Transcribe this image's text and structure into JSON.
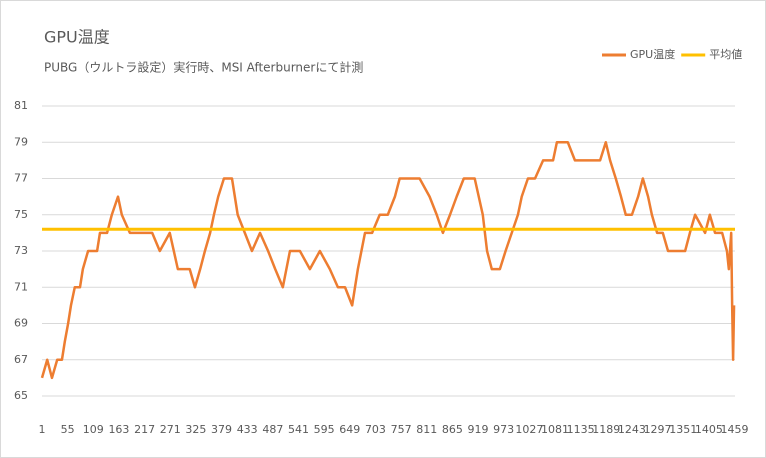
{
  "chart_data": {
    "type": "line",
    "title": "GPU温度",
    "subtitle": "PUBG（ウルトラ設定）実行時、MSI Afterburnerにて計測",
    "xlim": [
      1,
      1460
    ],
    "xticks": [
      1,
      55,
      109,
      163,
      217,
      271,
      325,
      379,
      433,
      487,
      541,
      595,
      649,
      703,
      757,
      811,
      865,
      919,
      973,
      1027,
      1081,
      1135,
      1189,
      1243,
      1297,
      1351,
      1405,
      1459
    ],
    "ylim": [
      65,
      81
    ],
    "yticks": [
      65,
      67,
      69,
      71,
      73,
      75,
      77,
      79,
      81
    ],
    "grid": true,
    "legend": "top-right",
    "series": [
      {
        "name": "GPU温度",
        "color": "#ed7d31",
        "x": [
          1,
          12,
          22,
          33,
          43,
          49,
          56,
          62,
          70,
          81,
          87,
          98,
          117,
          123,
          138,
          148,
          161,
          169,
          186,
          207,
          233,
          249,
          270,
          287,
          312,
          323,
          334,
          344,
          355,
          363,
          372,
          384,
          401,
          413,
          428,
          443,
          460,
          477,
          492,
          508,
          523,
          544,
          565,
          586,
          607,
          624,
          639,
          654,
          666,
          681,
          696,
          712,
          729,
          744,
          754,
          775,
          796,
          817,
          832,
          845,
          860,
          874,
          889,
          912,
          929,
          938,
          948,
          965,
          977,
          990,
          1003,
          1011,
          1024,
          1039,
          1056,
          1077,
          1085,
          1108,
          1123,
          1155,
          1176,
          1188,
          1197,
          1209,
          1220,
          1230,
          1243,
          1256,
          1266,
          1277,
          1285,
          1296,
          1308,
          1319,
          1334,
          1355,
          1365,
          1376,
          1397,
          1407,
          1418,
          1433,
          1443,
          1447,
          1452,
          1454,
          1456,
          1458
        ],
        "values": [
          66,
          67,
          66,
          67,
          67,
          68,
          69,
          70,
          71,
          71,
          72,
          73,
          73,
          74,
          74,
          75,
          76,
          75,
          74,
          74,
          74,
          73,
          74,
          72,
          72,
          71,
          72,
          73,
          74,
          75,
          76,
          77,
          77,
          75,
          74,
          73,
          74,
          73,
          72,
          71,
          73,
          73,
          72,
          73,
          72,
          71,
          71,
          70,
          72,
          74,
          74,
          75,
          75,
          76,
          77,
          77,
          77,
          76,
          75,
          74,
          75,
          76,
          77,
          77,
          75,
          73,
          72,
          72,
          73,
          74,
          75,
          76,
          77,
          77,
          78,
          78,
          79,
          79,
          78,
          78,
          78,
          79,
          78,
          77,
          76,
          75,
          75,
          76,
          77,
          76,
          75,
          74,
          74,
          73,
          73,
          73,
          74,
          75,
          74,
          75,
          74,
          74,
          73,
          72,
          74,
          70,
          67,
          70
        ]
      },
      {
        "name": "平均値",
        "color": "#ffc000",
        "x": [
          1,
          1460
        ],
        "values": [
          74.2,
          74.2
        ]
      }
    ]
  }
}
